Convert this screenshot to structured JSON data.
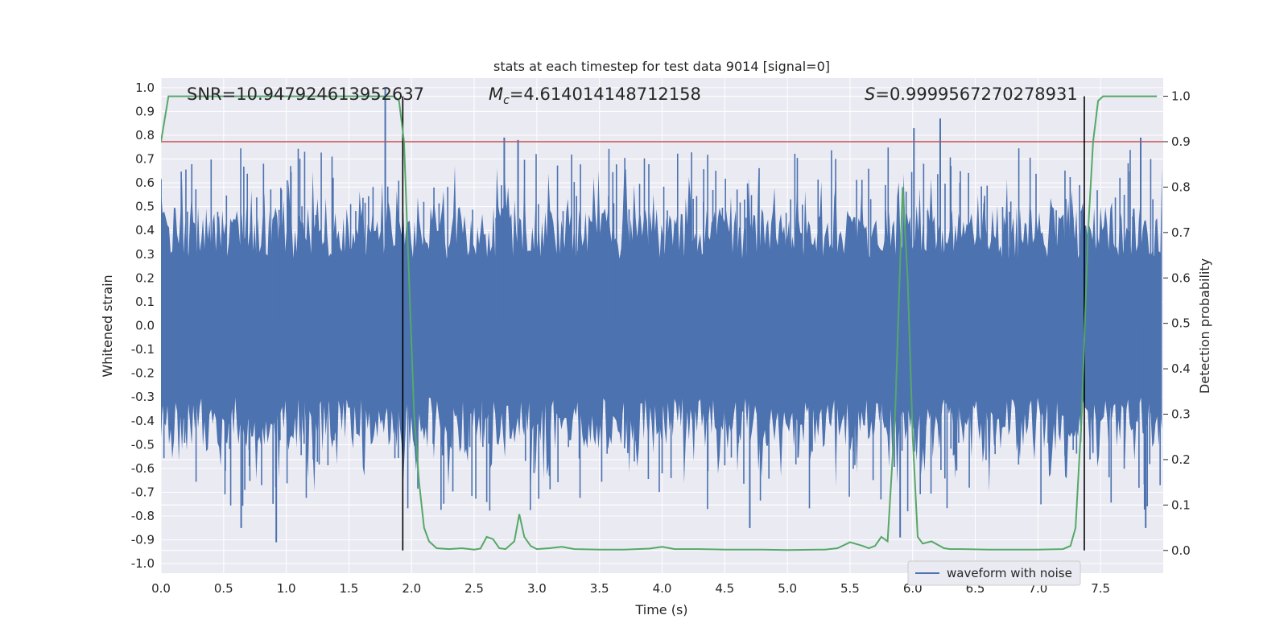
{
  "chart_data": {
    "type": "line",
    "title": "stats at each timestep for test data 9014 [signal=0]",
    "xlabel": "Time (s)",
    "ylabel_left": "Whitened strain",
    "ylabel_right": "Detection probability",
    "xlim": [
      0.0,
      8.0
    ],
    "ylim_left": [
      -1.04,
      1.04
    ],
    "ylim_right": [
      -0.05,
      1.04
    ],
    "x_ticks": [
      "0.0",
      "0.5",
      "1.0",
      "1.5",
      "2.0",
      "2.5",
      "3.0",
      "3.5",
      "4.0",
      "4.5",
      "5.0",
      "5.5",
      "6.0",
      "6.5",
      "7.0",
      "7.5"
    ],
    "y_left_ticks": [
      "-1.0",
      "-0.9",
      "-0.8",
      "-0.7",
      "-0.6",
      "-0.5",
      "-0.4",
      "-0.3",
      "-0.2",
      "-0.1",
      "0.0",
      "0.1",
      "0.2",
      "0.3",
      "0.4",
      "0.5",
      "0.6",
      "0.7",
      "0.8",
      "0.9",
      "1.0"
    ],
    "y_right_ticks": [
      "0.0",
      "0.1",
      "0.2",
      "0.3",
      "0.4",
      "0.5",
      "0.6",
      "0.7",
      "0.8",
      "0.9",
      "1.0"
    ],
    "grid": true,
    "annotations": {
      "snr": "SNR=10.947924613952637",
      "mc_value": "=4.614014148712158",
      "s_value": "=0.9999567270278931"
    },
    "legend": {
      "location": "lower-right",
      "entries": [
        "waveform with noise"
      ]
    },
    "series": [
      {
        "name": "waveform with noise",
        "color": "#4c72b0",
        "axis": "left",
        "x_range": [
          0.0,
          7.99
        ],
        "envelope_spikes": [
          {
            "x": 1.79,
            "y": 1.0
          },
          {
            "x": 6.01,
            "y": 0.83
          },
          {
            "x": 6.22,
            "y": 0.87
          },
          {
            "x": 0.92,
            "y": -0.91
          },
          {
            "x": 5.9,
            "y": -0.89
          },
          {
            "x": 4.7,
            "y": -0.85
          },
          {
            "x": 0.64,
            "y": -0.85
          },
          {
            "x": 7.86,
            "y": -0.85
          },
          {
            "x": 2.74,
            "y": 0.79
          },
          {
            "x": 2.85,
            "y": 0.78
          },
          {
            "x": 7.82,
            "y": 0.79
          }
        ]
      },
      {
        "name": "detection probability",
        "color": "#55a868",
        "axis": "right",
        "x": [
          0.0,
          0.06,
          0.12,
          0.18,
          0.3,
          0.6,
          0.9,
          1.2,
          1.5,
          1.7,
          1.86,
          1.9,
          1.94,
          1.98,
          2.02,
          2.06,
          2.1,
          2.14,
          2.2,
          2.3,
          2.4,
          2.5,
          2.55,
          2.6,
          2.65,
          2.7,
          2.75,
          2.82,
          2.86,
          2.9,
          2.95,
          3.0,
          3.1,
          3.2,
          3.3,
          3.5,
          3.7,
          3.9,
          4.0,
          4.1,
          4.3,
          4.5,
          4.8,
          5.0,
          5.3,
          5.4,
          5.5,
          5.6,
          5.65,
          5.7,
          5.75,
          5.8,
          5.86,
          5.92,
          5.96,
          6.0,
          6.04,
          6.08,
          6.15,
          6.25,
          6.3,
          6.4,
          6.6,
          6.8,
          7.0,
          7.2,
          7.26,
          7.3,
          7.35,
          7.4,
          7.44,
          7.48,
          7.52,
          7.58,
          7.7,
          7.95
        ],
        "y": [
          0.9,
          1.0,
          1.0,
          1.0,
          1.0,
          1.0,
          1.0,
          1.0,
          1.0,
          1.0,
          1.0,
          0.99,
          0.9,
          0.6,
          0.3,
          0.15,
          0.05,
          0.02,
          0.005,
          0.003,
          0.005,
          0.002,
          0.004,
          0.03,
          0.025,
          0.005,
          0.003,
          0.02,
          0.08,
          0.03,
          0.01,
          0.003,
          0.005,
          0.008,
          0.003,
          0.002,
          0.002,
          0.004,
          0.008,
          0.003,
          0.003,
          0.002,
          0.002,
          0.001,
          0.002,
          0.005,
          0.018,
          0.01,
          0.005,
          0.01,
          0.03,
          0.02,
          0.3,
          0.8,
          0.6,
          0.25,
          0.03,
          0.015,
          0.02,
          0.005,
          0.003,
          0.003,
          0.002,
          0.002,
          0.002,
          0.003,
          0.01,
          0.05,
          0.3,
          0.7,
          0.9,
          0.99,
          1.0,
          1.0,
          1.0,
          1.0
        ]
      },
      {
        "name": "threshold",
        "color": "#c44e52",
        "axis": "right",
        "y_const": 0.9
      }
    ],
    "vlines": [
      1.93,
      7.37
    ],
    "vline_color": "#000000",
    "vline_range_right": [
      0.0,
      1.0
    ]
  }
}
